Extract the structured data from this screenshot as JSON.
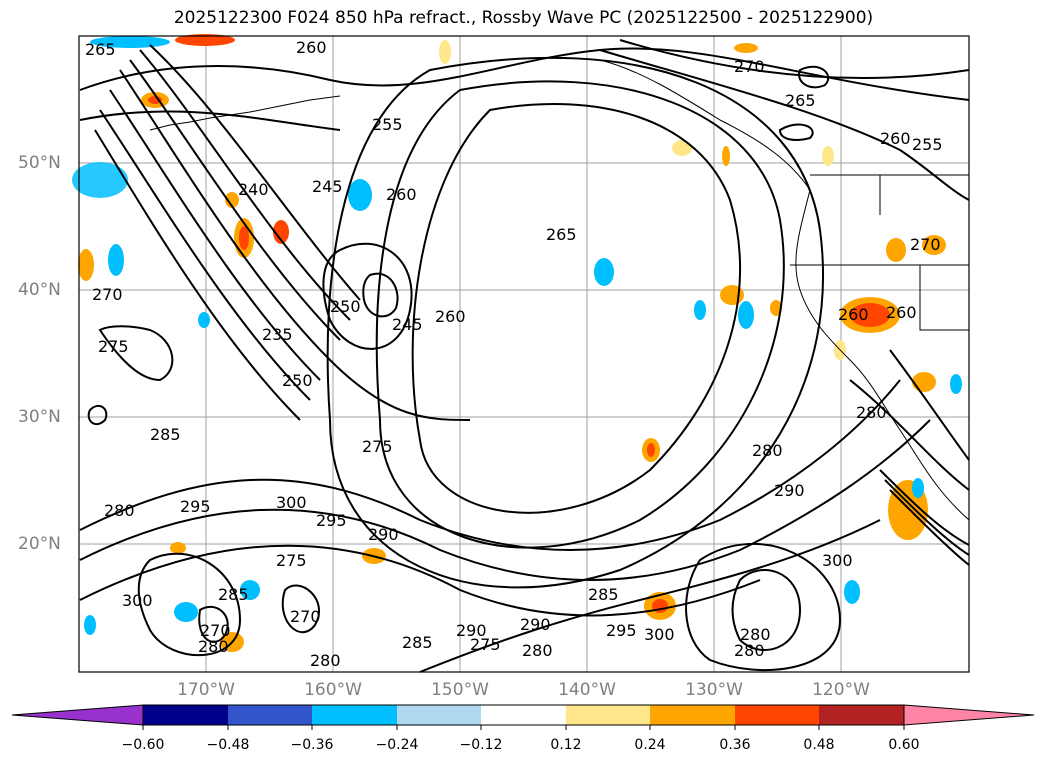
{
  "title": "2025122300 F024 850 hPa refract., Rossby Wave PC (2025122500 - 2025122900)",
  "map": {
    "extent": {
      "lon_min": -178,
      "lon_max": -108,
      "lat_min": 10,
      "lat_max": 60
    },
    "lat_labels": [
      "50°N",
      "40°N",
      "30°N",
      "20°N"
    ],
    "lon_labels": [
      "170°W",
      "160°W",
      "150°W",
      "140°W",
      "130°W",
      "120°W"
    ],
    "contour_labels": [
      "265",
      "260",
      "270",
      "265",
      "255",
      "260",
      "255",
      "240",
      "245",
      "260",
      "265",
      "270",
      "275",
      "270",
      "250",
      "245",
      "260",
      "235",
      "250",
      "275",
      "285",
      "280",
      "295",
      "300",
      "295",
      "290",
      "275",
      "285",
      "270",
      "300",
      "280",
      "285",
      "275",
      "290",
      "290",
      "280",
      "285",
      "295",
      "300",
      "280",
      "290",
      "280",
      "300",
      "280",
      "280",
      "280",
      "270",
      "260",
      "260"
    ],
    "grid": true,
    "land_color": "#ffffff",
    "coastline_color": "#000000"
  },
  "colorbar": {
    "ticks": [
      "−0.60",
      "−0.48",
      "−0.36",
      "−0.24",
      "−0.12",
      "0.12",
      "0.24",
      "0.36",
      "0.48",
      "0.60"
    ],
    "colors": [
      "#9932cc",
      "#00008b",
      "#3355cc",
      "#00bfff",
      "#add8f0",
      "#ffffff",
      "#ffe68a",
      "#ffa500",
      "#ff4500",
      "#b22222",
      "#ff85a7"
    ],
    "extend": "both"
  }
}
